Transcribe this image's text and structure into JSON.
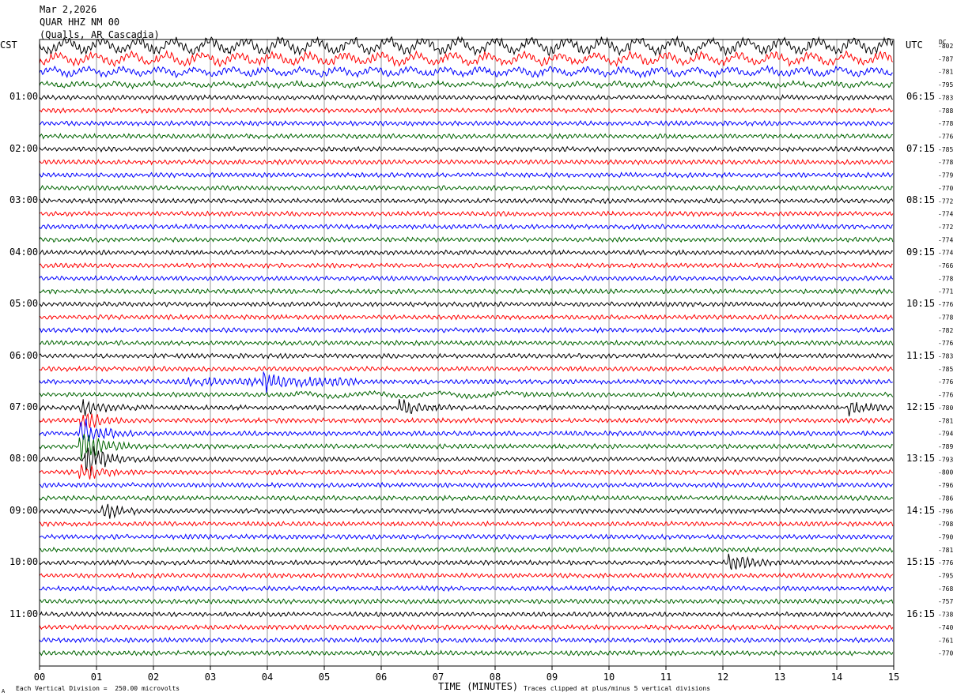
{
  "header": {
    "date": "Mar 2,2026",
    "station": "QUAR HHZ NM 00",
    "location": "(Qualls, AR Cascadia)"
  },
  "left_zone_label": "CST",
  "right_zone_label": "UTC",
  "dc_label": "DC",
  "footer": {
    "scale": "Each Vertical Division =  250.00 microvolts",
    "clip": "Traces clipped at plus/minus 5 vertical divisions",
    "corner_mark": "A"
  },
  "colors": [
    "#000000",
    "#ff0000",
    "#0000ff",
    "#006400"
  ],
  "chart_data": {
    "type": "line",
    "title": "",
    "xlabel": "TIME (MINUTES)",
    "ylabel": "",
    "x_ticks": [
      "00",
      "01",
      "02",
      "03",
      "04",
      "05",
      "06",
      "07",
      "08",
      "09",
      "10",
      "11",
      "12",
      "13",
      "14",
      "15"
    ],
    "xlim": [
      0,
      15
    ],
    "left_hour_labels": [
      "01:00",
      "02:00",
      "03:00",
      "04:00",
      "05:00",
      "06:00",
      "07:00",
      "08:00",
      "09:00",
      "10:00",
      "11:00"
    ],
    "right_hour_labels": [
      "06:15",
      "07:15",
      "08:15",
      "09:15",
      "10:15",
      "11:15",
      "12:15",
      "13:15",
      "14:15",
      "15:15",
      "16:15"
    ],
    "dc_offsets": [
      "-802",
      "-787",
      "-781",
      "-795",
      "-783",
      "-788",
      "-778",
      "-776",
      "-785",
      "-778",
      "-779",
      "-770",
      "-772",
      "-774",
      "-772",
      "-774",
      "-774",
      "-766",
      "-778",
      "-771",
      "-776",
      "-778",
      "-782",
      "-776",
      "-783",
      "-785",
      "-776",
      "-776",
      "-780",
      "-781",
      "-794",
      "-789",
      "-793",
      "-800",
      "-796",
      "-786",
      "-796",
      "-798",
      "-790",
      "-781",
      "-776",
      "-795",
      "-768",
      "-757",
      "-738",
      "-740",
      "-761",
      "-770"
    ],
    "events": [
      {
        "row": 28,
        "minute": 0.8,
        "amplitude": 1.6
      },
      {
        "row": 29,
        "minute": 0.8,
        "amplitude": 1.8
      },
      {
        "row": 30,
        "minute": 0.8,
        "amplitude": 2.6
      },
      {
        "row": 31,
        "minute": 0.8,
        "amplitude": 3.2
      },
      {
        "row": 32,
        "minute": 0.9,
        "amplitude": 3.0
      },
      {
        "row": 33,
        "minute": 0.8,
        "amplitude": 1.5
      },
      {
        "row": 28,
        "minute": 6.4,
        "amplitude": 1.5
      },
      {
        "row": 26,
        "minute": 4.0,
        "amplitude": 1.4
      },
      {
        "row": 36,
        "minute": 1.2,
        "amplitude": 1.3
      },
      {
        "row": 40,
        "minute": 12.2,
        "amplitude": 1.3
      },
      {
        "row": 28,
        "minute": 14.3,
        "amplitude": 1.2
      }
    ]
  }
}
